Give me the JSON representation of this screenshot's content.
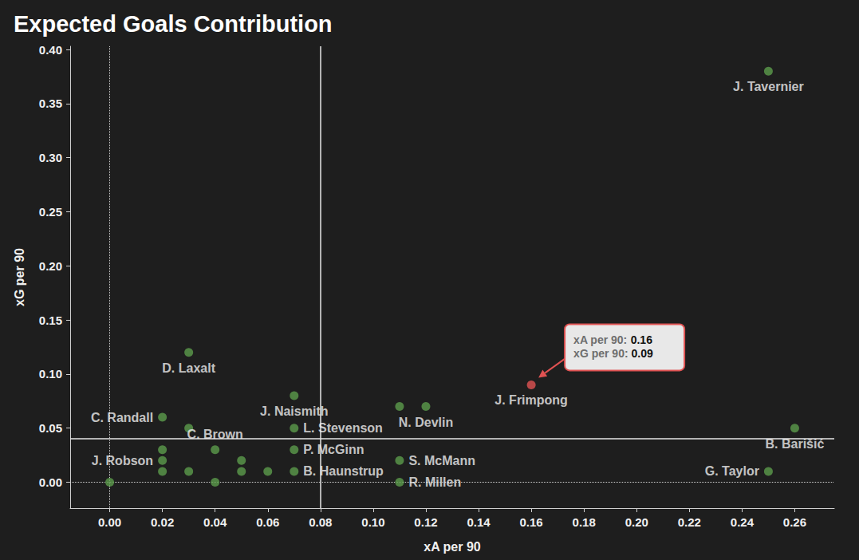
{
  "chart_data": {
    "type": "scatter",
    "title": "Expected Goals Contribution",
    "x_label": "xA per 90",
    "y_label": "xG per 90",
    "names": [
      "J. Tavernier",
      "D. Laxalt",
      "J. Frimpong",
      "J. Naismith",
      null,
      "N. Devlin",
      "B. Barišić",
      "C. Randall",
      null,
      "L. Stevenson",
      "C. Brown",
      "P. McGinn",
      null,
      "J. Robson",
      null,
      "S. McMann",
      null,
      null,
      null,
      null,
      "B. Haunstrup",
      "G. Taylor",
      null,
      null,
      "R. Millen"
    ],
    "x": [
      0.25,
      0.03,
      0.16,
      0.07,
      0.11,
      0.12,
      0.26,
      0.02,
      0.03,
      0.07,
      0.04,
      0.07,
      0.02,
      0.02,
      0.05,
      0.11,
      0.02,
      0.03,
      0.05,
      0.06,
      0.07,
      0.25,
      0.0,
      0.04,
      0.11
    ],
    "y": [
      0.38,
      0.12,
      0.09,
      0.08,
      0.07,
      0.07,
      0.05,
      0.06,
      0.05,
      0.05,
      0.03,
      0.03,
      0.03,
      0.02,
      0.02,
      0.02,
      0.01,
      0.01,
      0.01,
      0.01,
      0.01,
      0.01,
      0.0,
      0.0,
      0.0
    ],
    "colors": [
      "#5b9b4b",
      "#5b9b4b",
      "#e05252",
      "#5b9b4b",
      "#5b9b4b",
      "#5b9b4b",
      "#5b9b4b",
      "#5b9b4b",
      "#5b9b4b",
      "#5b9b4b",
      "#5b9b4b",
      "#5b9b4b",
      "#5b9b4b",
      "#5b9b4b",
      "#5b9b4b",
      "#5b9b4b",
      "#5b9b4b",
      "#5b9b4b",
      "#5b9b4b",
      "#5b9b4b",
      "#5b9b4b",
      "#5b9b4b",
      "#5b9b4b",
      "#5b9b4b",
      "#5b9b4b"
    ],
    "xlim": [
      -0.015,
      0.275
    ],
    "ylim": [
      -0.024,
      0.403
    ],
    "xticks": [
      {
        "value": 0,
        "label": "0.00"
      },
      {
        "value": 0.02,
        "label": "0.02"
      },
      {
        "value": 0.04,
        "label": "0.04"
      },
      {
        "value": 0.06,
        "label": "0.06"
      },
      {
        "value": 0.08,
        "label": "0.08"
      },
      {
        "value": 0.1,
        "label": "0.10"
      },
      {
        "value": 0.12,
        "label": "0.12"
      },
      {
        "value": 0.14,
        "label": "0.14"
      },
      {
        "value": 0.16,
        "label": "0.16"
      },
      {
        "value": 0.18,
        "label": "0.18"
      },
      {
        "value": 0.2,
        "label": "0.20"
      },
      {
        "value": 0.22,
        "label": "0.22"
      },
      {
        "value": 0.24,
        "label": "0.24"
      },
      {
        "value": 0.26,
        "label": "0.26"
      }
    ],
    "yticks": [
      {
        "value": 0,
        "label": "0.00"
      },
      {
        "value": 0.05,
        "label": "0.05"
      },
      {
        "value": 0.1,
        "label": "0.10"
      },
      {
        "value": 0.15,
        "label": "0.15"
      },
      {
        "value": 0.2,
        "label": "0.20"
      },
      {
        "value": 0.25,
        "label": "0.25"
      },
      {
        "value": 0.3,
        "label": "0.30"
      },
      {
        "value": 0.35,
        "label": "0.35"
      },
      {
        "value": 0.4,
        "label": "0.40"
      }
    ],
    "ref_lines": {
      "x": 0.08,
      "y": 0.045
    },
    "dotted_lines": {
      "x": 0,
      "y": 0
    },
    "grid": false,
    "annotation": {
      "target": "J. Frimpong",
      "lines": [
        {
          "label": "xA per 90:",
          "value": 0.16
        },
        {
          "label": "xG per 90:",
          "value": 0.09
        }
      ]
    }
  }
}
